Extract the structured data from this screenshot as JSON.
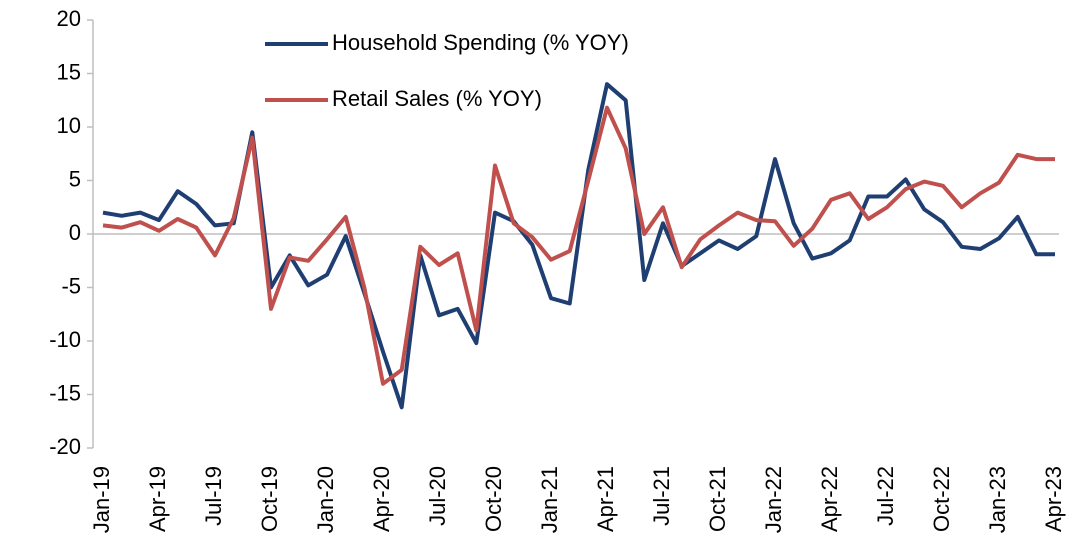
{
  "chart_data": {
    "type": "line",
    "categories": [
      "Jan-19",
      null,
      null,
      "Apr-19",
      null,
      null,
      "Jul-19",
      null,
      null,
      "Oct-19",
      null,
      null,
      "Jan-20",
      null,
      null,
      "Apr-20",
      null,
      null,
      "Jul-20",
      null,
      null,
      "Oct-20",
      null,
      null,
      "Jan-21",
      null,
      null,
      "Apr-21",
      null,
      null,
      "Jul-21",
      null,
      null,
      "Oct-21",
      null,
      null,
      "Jan-22",
      null,
      null,
      "Apr-22",
      null,
      null,
      "Jul-22",
      null,
      null,
      "Oct-22",
      null,
      null,
      "Jan-23",
      null,
      null,
      "Apr-23"
    ],
    "series": [
      {
        "name": "Household Spending (% YOY)",
        "color": "#1f3f73",
        "values": [
          2,
          1.7,
          2,
          1.3,
          4,
          2.8,
          0.8,
          1,
          9.5,
          -5,
          -2,
          -4.8,
          -3.8,
          -0.2,
          -5.5,
          -11,
          -16.2,
          -2,
          -7.6,
          -7,
          -10.2,
          2,
          1.2,
          -1,
          -6,
          -6.5,
          6,
          14,
          12.5,
          -4.3,
          1,
          -3,
          -1.8,
          -0.6,
          -1.4,
          -0.2,
          7,
          1,
          -2.3,
          -1.8,
          -0.6,
          3.5,
          3.5,
          5.1,
          2.3,
          1.1,
          -1.2,
          -1.4,
          -0.4,
          1.6,
          -1.9,
          -1.9
        ]
      },
      {
        "name": "Retail Sales (% YOY)",
        "color": "#c0504d",
        "values": [
          0.8,
          0.6,
          1.1,
          0.3,
          1.4,
          0.6,
          -2,
          1.5,
          9,
          -7,
          -2.2,
          -2.5,
          -0.5,
          1.6,
          -5,
          -14,
          -12.7,
          -1.2,
          -2.9,
          -1.8,
          -9,
          6.4,
          1,
          -0.3,
          -2.4,
          -1.6,
          5,
          11.8,
          8,
          0,
          2.5,
          -3.1,
          -0.5,
          0.8,
          2,
          1.3,
          1.2,
          -1.1,
          0.5,
          3.2,
          3.8,
          1.4,
          2.5,
          4.2,
          4.9,
          4.5,
          2.5,
          3.8,
          4.8,
          7.4,
          7,
          7
        ]
      }
    ],
    "ylim": [
      -20,
      20
    ],
    "yticks": [
      -20,
      -15,
      -10,
      -5,
      0,
      5,
      10,
      15,
      20
    ],
    "grid": false,
    "legend": "top"
  }
}
